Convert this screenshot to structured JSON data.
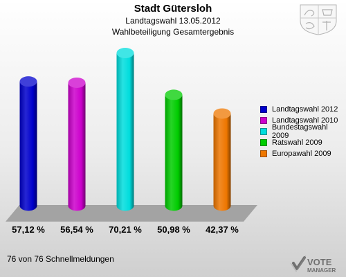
{
  "header": {
    "title": "Stadt Gütersloh",
    "subtitle": "Landtagswahl 13.05.2012",
    "subtitle2": "Wahlbeteiligung Gesamtergebnis"
  },
  "footer": {
    "reporting_status": "76 von 76 Schnellmeldungen"
  },
  "logo": {
    "line1": "VOTE",
    "line2": "MANAGER"
  },
  "chart_data": {
    "type": "bar",
    "title": "Stadt Gütersloh",
    "xlabel": "",
    "ylabel": "",
    "ylim": [
      0,
      75
    ],
    "grid": false,
    "legend_position": "right",
    "categories": [
      "Landtagswahl 2012",
      "Landtagswahl 2010",
      "Bundestagswahl 2009",
      "Ratswahl 2009",
      "Europawahl 2009"
    ],
    "values": [
      57.12,
      56.54,
      70.21,
      50.98,
      42.37
    ],
    "value_labels": [
      "57,12 %",
      "56,54 %",
      "70,21 %",
      "50,98 %",
      "42,37 %"
    ],
    "colors": [
      "#0000cc",
      "#cc00cc",
      "#00dddd",
      "#00cc00",
      "#ee7700"
    ]
  },
  "icons": [
    "coat-of-arms-icon",
    "vote-manager-logo-icon"
  ]
}
